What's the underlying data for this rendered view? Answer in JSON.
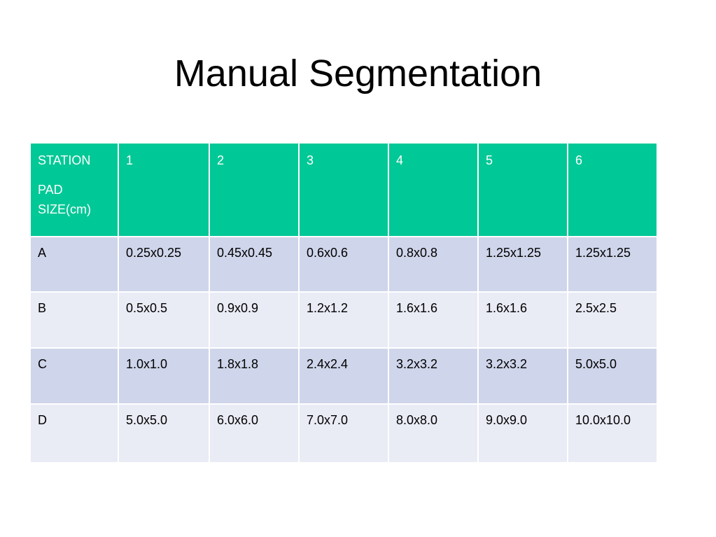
{
  "title": "Manual Segmentation",
  "table": {
    "header_corner": {
      "line1": "STATION",
      "line2": "PAD SIZE(cm)"
    },
    "columns": [
      "1",
      "2",
      "3",
      "4",
      "5",
      "6"
    ],
    "rows": [
      {
        "label": "A",
        "cells": [
          "0.25x0.25",
          "0.45x0.45",
          "0.6x0.6",
          "0.8x0.8",
          "1.25x1.25",
          "1.25x1.25"
        ]
      },
      {
        "label": "B",
        "cells": [
          "0.5x0.5",
          "0.9x0.9",
          "1.2x1.2",
          "1.6x1.6",
          "1.6x1.6",
          "2.5x2.5"
        ]
      },
      {
        "label": "C",
        "cells": [
          "1.0x1.0",
          "1.8x1.8",
          "2.4x2.4",
          "3.2x3.2",
          "3.2x3.2",
          "5.0x5.0"
        ]
      },
      {
        "label": "D",
        "cells": [
          "5.0x5.0",
          "6.0x6.0",
          "7.0x7.0",
          "8.0x8.0",
          "9.0x9.0",
          "10.0x10.0"
        ]
      }
    ]
  },
  "colors": {
    "header_bg": "#00c896",
    "row_dark": "#cfd5ea",
    "row_light": "#e9ebf5"
  }
}
